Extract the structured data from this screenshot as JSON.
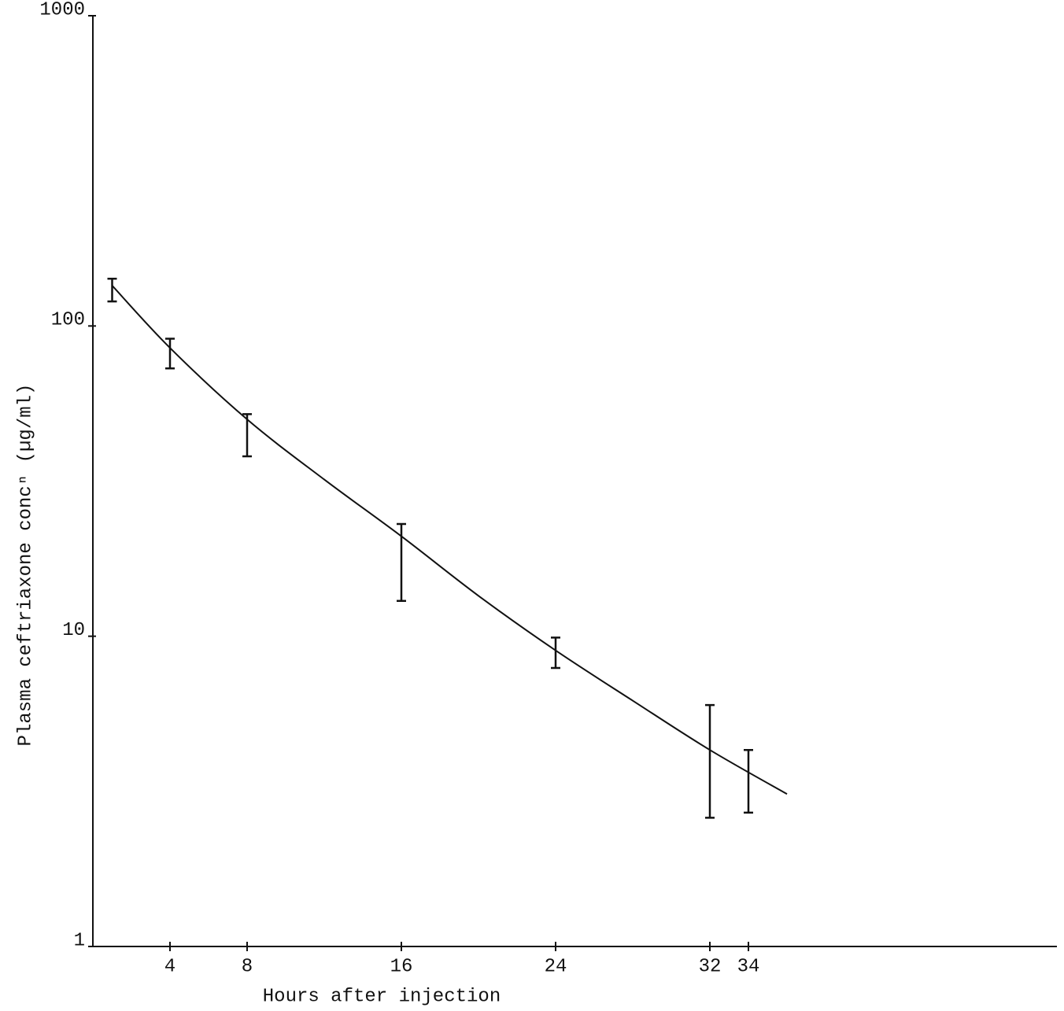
{
  "chart_data": {
    "type": "errorbar",
    "x_label": "Hours after injection",
    "y_label": "Plasma ceftriaxone concⁿ (µg/ml)",
    "log_y": true,
    "xlim": [
      0,
      50
    ],
    "xticks": [
      4,
      8,
      16,
      24,
      32,
      34
    ],
    "ylim": [
      1,
      1000
    ],
    "yticks": [
      1,
      10,
      100,
      1000
    ],
    "color": "#111111",
    "x": [
      1,
      4,
      8,
      16,
      24,
      32,
      34
    ],
    "values": [
      131,
      82,
      45,
      18,
      8.9,
      4.3,
      3.5
    ],
    "errors": [
      11,
      9,
      7,
      5,
      1,
      1.7,
      0.8
    ],
    "fit": {
      "x": [
        1,
        4,
        8,
        12,
        16,
        20,
        24,
        28,
        32,
        36
      ],
      "values": [
        135,
        85,
        50,
        32,
        21,
        13.5,
        9,
        6.2,
        4.3,
        3.1
      ]
    }
  }
}
